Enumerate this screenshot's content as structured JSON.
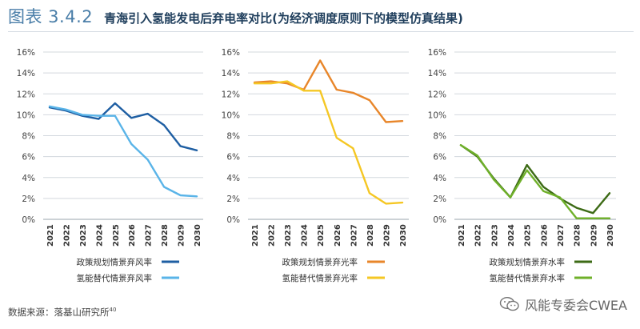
{
  "header": {
    "figure_label": "图表 3.4.2",
    "title": "青海引入氢能发电后弃电率对比(为经济调度原则下的模型仿真结果)"
  },
  "footer": {
    "source": "数据来源：落基山研究所",
    "source_note": "40",
    "watermark": "风能专委会CWEA"
  },
  "chart_data": [
    {
      "type": "line",
      "title": "",
      "xlabel": "",
      "ylabel": "",
      "x": [
        "2021",
        "2022",
        "2023",
        "2024",
        "2025",
        "2026",
        "2027",
        "2028",
        "2029",
        "2030"
      ],
      "y_ticks": [
        "0%",
        "2%",
        "4%",
        "6%",
        "8%",
        "10%",
        "12%",
        "14%",
        "16%"
      ],
      "ylim": [
        0,
        16
      ],
      "grid": "horizontal",
      "legend_position": "bottom",
      "series": [
        {
          "name": "政策规划情景弃风率",
          "color": "#1f5fa3",
          "values": [
            10.7,
            10.4,
            9.9,
            9.6,
            11.1,
            9.7,
            10.1,
            9.0,
            7.0,
            6.6
          ]
        },
        {
          "name": "氢能替代情景弃风率",
          "color": "#5ab4e8",
          "values": [
            10.8,
            10.5,
            10.0,
            9.9,
            9.9,
            7.2,
            5.7,
            3.1,
            2.3,
            2.2
          ]
        }
      ]
    },
    {
      "type": "line",
      "title": "",
      "xlabel": "",
      "ylabel": "",
      "x": [
        "2021",
        "2022",
        "2023",
        "2024",
        "2025",
        "2026",
        "2027",
        "2028",
        "2029",
        "2030"
      ],
      "y_ticks": [
        "0%",
        "2%",
        "4%",
        "6%",
        "8%",
        "10%",
        "12%",
        "14%",
        "16%"
      ],
      "ylim": [
        0,
        16
      ],
      "grid": "horizontal",
      "legend_position": "bottom",
      "series": [
        {
          "name": "政策规划情景弃光率",
          "color": "#e8862a",
          "values": [
            13.1,
            13.2,
            13.0,
            12.4,
            15.2,
            12.4,
            12.1,
            11.4,
            9.3,
            9.4
          ]
        },
        {
          "name": "氢能替代情景弃光率",
          "color": "#f5c724",
          "values": [
            13.0,
            13.0,
            13.2,
            12.3,
            12.3,
            7.8,
            6.8,
            2.5,
            1.5,
            1.6
          ]
        }
      ]
    },
    {
      "type": "line",
      "title": "",
      "xlabel": "",
      "ylabel": "",
      "x": [
        "2021",
        "2022",
        "2023",
        "2024",
        "2025",
        "2026",
        "2027",
        "2028",
        "2029",
        "2030"
      ],
      "y_ticks": [
        "0%",
        "2%",
        "4%",
        "6%",
        "8%",
        "10%",
        "12%",
        "14%",
        "16%"
      ],
      "ylim": [
        0,
        16
      ],
      "grid": "horizontal",
      "legend_position": "bottom",
      "series": [
        {
          "name": "政策规划情景弃水率",
          "color": "#3d6b16",
          "values": [
            7.1,
            6.0,
            3.9,
            2.1,
            5.2,
            3.1,
            2.0,
            1.1,
            0.6,
            2.5
          ]
        },
        {
          "name": "氢能替代情景弃水率",
          "color": "#6fb02a",
          "values": [
            7.1,
            6.1,
            3.8,
            2.1,
            4.7,
            2.7,
            2.1,
            0.1,
            0.1,
            0.1
          ]
        }
      ]
    }
  ]
}
